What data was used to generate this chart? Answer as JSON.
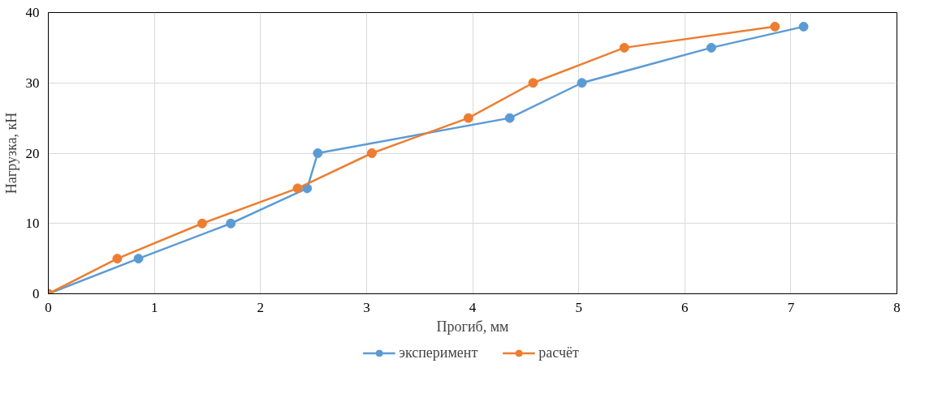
{
  "chart_data": {
    "type": "line",
    "xlabel": "Прогиб, мм",
    "ylabel": "Нагрузка, кН",
    "xlim": [
      0,
      8
    ],
    "ylim": [
      0,
      40
    ],
    "xticks": [
      0,
      1,
      2,
      3,
      4,
      5,
      6,
      7,
      8
    ],
    "yticks": [
      0,
      10,
      20,
      30,
      40
    ],
    "grid": true,
    "legend": "bottom",
    "marker": "circle",
    "line_style": "solid",
    "series": [
      {
        "name": "эксперимент",
        "color": "#5b9bd5",
        "x": [
          0,
          0.85,
          1.72,
          2.44,
          2.54,
          4.35,
          5.03,
          6.25,
          7.12
        ],
        "values": [
          0,
          5,
          10,
          15,
          20,
          25,
          30,
          35,
          38
        ]
      },
      {
        "name": "расчёт",
        "color": "#ed7d31",
        "x": [
          0,
          0.65,
          1.45,
          2.35,
          3.05,
          3.96,
          4.57,
          5.43,
          6.85
        ],
        "values": [
          0,
          5,
          10,
          15,
          20,
          25,
          30,
          35,
          38
        ]
      }
    ]
  }
}
